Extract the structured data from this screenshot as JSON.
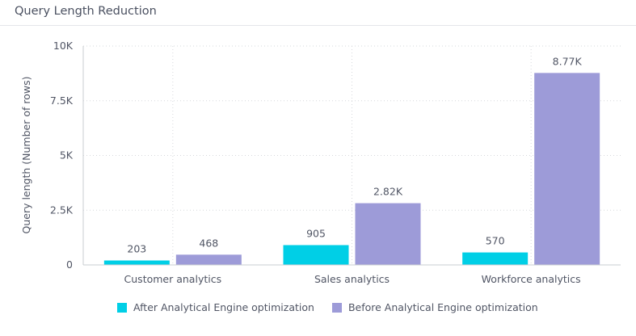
{
  "chart_data": {
    "type": "bar",
    "title": "Query Length Reduction",
    "xlabel": "",
    "ylabel": "Query length (Number of rows)",
    "ylim": [
      0,
      10000
    ],
    "yticks": [
      0,
      2500,
      5000,
      7500,
      10000
    ],
    "ytick_labels": [
      "0",
      "2.5K",
      "5K",
      "7.5K",
      "10K"
    ],
    "grid": true,
    "legend_position": "bottom",
    "categories": [
      "Customer analytics",
      "Sales analytics",
      "Workforce analytics"
    ],
    "series": [
      {
        "name": "After Analytical Engine optimization",
        "color": "#00cfe6",
        "values": [
          203,
          905,
          570
        ],
        "labels": [
          "203",
          "905",
          "570"
        ]
      },
      {
        "name": "Before Analytical Engine optimization",
        "color": "#9d9bd8",
        "values": [
          468,
          2820,
          8770
        ],
        "labels": [
          "468",
          "2.82K",
          "8.77K"
        ]
      }
    ]
  }
}
